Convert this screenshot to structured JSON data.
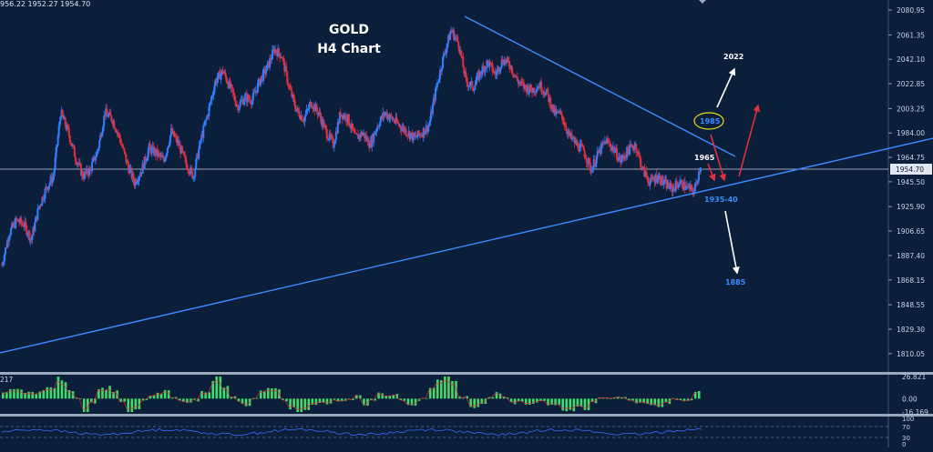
{
  "ohlc_readout": "956.22 1952.27 1954.70",
  "title_line1": "GOLD",
  "title_line2": "H4 Chart",
  "chart_data": [
    {
      "type": "line",
      "panel": "price",
      "ylim": [
        1802,
        2086
      ],
      "current_price": "1954.70",
      "yticks": [
        "2080.95",
        "2061.35",
        "2042.10",
        "2022.85",
        "2003.25",
        "1984.00",
        "1964.75",
        "1945.50",
        "1925.90",
        "1906.65",
        "1887.40",
        "1868.15",
        "1848.55",
        "1829.30",
        "1810.05"
      ],
      "price_series": [
        1880,
        1905,
        1915,
        1912,
        1900,
        1925,
        1940,
        1950,
        2000,
        1985,
        1965,
        1950,
        1955,
        1970,
        2000,
        1995,
        1980,
        1960,
        1945,
        1955,
        1972,
        1968,
        1962,
        1985,
        1975,
        1960,
        1950,
        1978,
        2000,
        2025,
        2033,
        2020,
        2005,
        2012,
        2010,
        2025,
        2035,
        2050,
        2045,
        2020,
        2002,
        1995,
        2008,
        2000,
        1985,
        1975,
        2000,
        1995,
        1980,
        1984,
        1975,
        1990,
        2000,
        1995,
        1990,
        1985,
        1980,
        1984,
        1990,
        2020,
        2045,
        2065,
        2055,
        2025,
        2020,
        2032,
        2040,
        2030,
        2042,
        2038,
        2025,
        2020,
        2018,
        2022,
        2015,
        2000,
        1998,
        1982,
        1975,
        1970,
        1955,
        1968,
        1978,
        1972,
        1962,
        1970,
        1975,
        1955,
        1945,
        1950,
        1944,
        1940,
        1945,
        1941,
        1938,
        1962
      ],
      "levels": [
        {
          "label": "1965",
          "color": "#ffffff"
        },
        {
          "label": "1985",
          "color": "#3c8cff"
        },
        {
          "label": "1935-40",
          "color": "#3c8cff"
        },
        {
          "label": "2022",
          "color": "#ffffff"
        },
        {
          "label": "1885",
          "color": "#3c8cff"
        }
      ],
      "colors": {
        "up": "#2f7fff",
        "down": "#e0303c",
        "trendline": "#3a8cff",
        "arrow_up_white": "#ffffff",
        "arrow_red": "#e0303c",
        "circle": "#e8d820"
      }
    },
    {
      "type": "bar",
      "panel": "oscillator",
      "ylim": [
        -16.169,
        26.821
      ],
      "yticks": [
        "26.821",
        "0.00",
        "-16.169"
      ],
      "corner_label": "217",
      "colors": {
        "bar": "#3ddc6b",
        "signal": "#e0303c"
      }
    },
    {
      "type": "line",
      "panel": "rsi",
      "ylim": [
        0,
        100
      ],
      "yticks": [
        "100",
        "70",
        "30",
        "0"
      ],
      "colors": {
        "line": "#3a6cff"
      }
    }
  ]
}
